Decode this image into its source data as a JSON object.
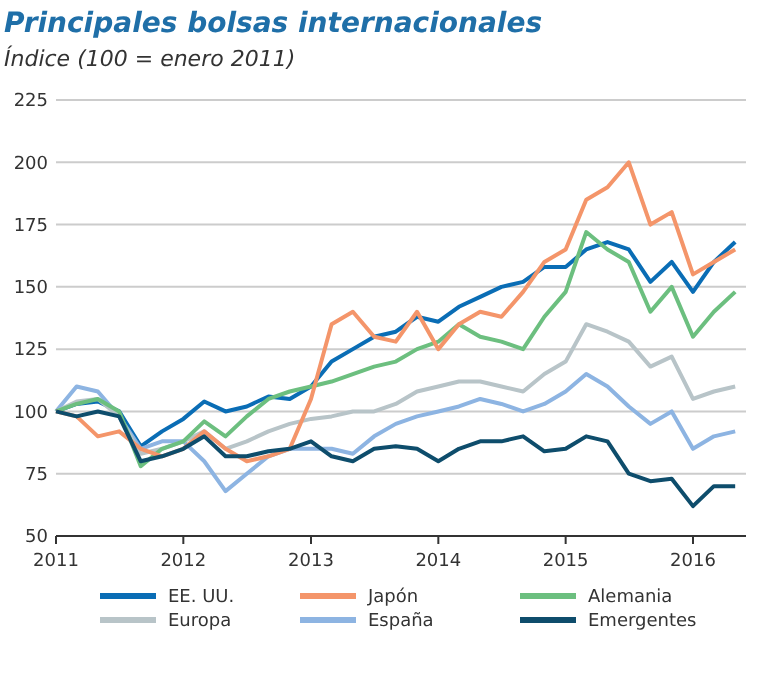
{
  "chart_data": {
    "type": "line",
    "title": "Principales bolsas internacionales",
    "subtitle": "Índice (100 = enero 2011)",
    "x": [
      "2011-01",
      "2011-03",
      "2011-05",
      "2011-07",
      "2011-09",
      "2011-11",
      "2012-01",
      "2012-03",
      "2012-05",
      "2012-07",
      "2012-09",
      "2012-11",
      "2013-01",
      "2013-03",
      "2013-05",
      "2013-07",
      "2013-09",
      "2013-11",
      "2014-01",
      "2014-03",
      "2014-05",
      "2014-07",
      "2014-09",
      "2014-11",
      "2015-01",
      "2015-03",
      "2015-05",
      "2015-07",
      "2015-09",
      "2015-11",
      "2016-01",
      "2016-03",
      "2016-05"
    ],
    "series": [
      {
        "name": "EE. UU.",
        "color": "#0a6db5",
        "values": [
          100,
          103,
          104,
          100,
          86,
          92,
          97,
          104,
          100,
          102,
          106,
          105,
          110,
          120,
          125,
          130,
          132,
          138,
          136,
          142,
          146,
          150,
          152,
          158,
          158,
          165,
          168,
          165,
          152,
          160,
          148,
          160,
          168
        ]
      },
      {
        "name": "España",
        "color": "#8db4e2",
        "values": [
          100,
          110,
          108,
          98,
          85,
          88,
          88,
          80,
          68,
          75,
          82,
          85,
          85,
          85,
          83,
          90,
          95,
          98,
          100,
          102,
          105,
          103,
          100,
          103,
          108,
          115,
          110,
          102,
          95,
          100,
          85,
          90,
          92
        ]
      },
      {
        "name": "Europa",
        "color": "#b8c4c8",
        "values": [
          100,
          104,
          105,
          98,
          83,
          85,
          88,
          92,
          85,
          88,
          92,
          95,
          97,
          98,
          100,
          100,
          103,
          108,
          110,
          112,
          112,
          110,
          108,
          115,
          120,
          135,
          132,
          128,
          118,
          122,
          105,
          108,
          110
        ]
      },
      {
        "name": "Alemania",
        "color": "#6cbf7f",
        "values": [
          100,
          103,
          105,
          100,
          78,
          85,
          88,
          96,
          90,
          98,
          105,
          108,
          110,
          112,
          115,
          118,
          120,
          125,
          128,
          135,
          130,
          128,
          125,
          138,
          148,
          172,
          165,
          160,
          140,
          150,
          130,
          140,
          148
        ]
      },
      {
        "name": "Japón",
        "color": "#f4956a",
        "values": [
          100,
          98,
          90,
          92,
          85,
          82,
          85,
          92,
          85,
          80,
          82,
          85,
          105,
          135,
          140,
          130,
          128,
          140,
          125,
          135,
          140,
          138,
          148,
          160,
          165,
          185,
          190,
          200,
          175,
          180,
          155,
          160,
          165
        ]
      },
      {
        "name": "Emergentes",
        "color": "#0e4d6c",
        "values": [
          100,
          98,
          100,
          98,
          80,
          82,
          85,
          90,
          82,
          82,
          84,
          85,
          88,
          82,
          80,
          85,
          86,
          85,
          80,
          85,
          88,
          88,
          90,
          84,
          85,
          90,
          88,
          75,
          72,
          73,
          62,
          70,
          70
        ]
      }
    ],
    "xlim": [
      "2011-01-01",
      "2016-06-01"
    ],
    "xticks": [
      {
        "value": "2011-01-01",
        "label": "2011"
      },
      {
        "value": "2012-01-01",
        "label": "2012"
      },
      {
        "value": "2013-01-01",
        "label": "2013"
      },
      {
        "value": "2014-01-01",
        "label": "2014"
      },
      {
        "value": "2015-01-01",
        "label": "2015"
      },
      {
        "value": "2016-01-01",
        "label": "2016"
      }
    ],
    "ylim": [
      50,
      225
    ],
    "yticks": [
      50,
      75,
      100,
      125,
      150,
      175,
      200,
      225
    ],
    "grid": "y",
    "legend": "bottom",
    "line_style": "solid"
  }
}
